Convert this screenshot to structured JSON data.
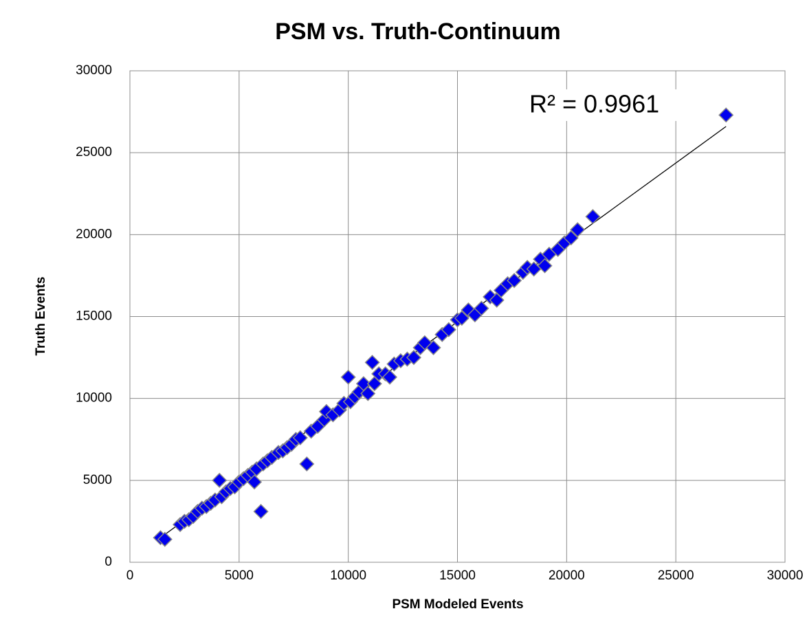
{
  "chart_data": {
    "type": "scatter",
    "title": "PSM vs. Truth-Continuum",
    "x_label": "PSM Modeled Events",
    "y_label": "Truth Events",
    "annotation": "R² = 0.9961",
    "series": [
      {
        "color": "#0000ee",
        "x": [
          1400,
          1600,
          2300,
          2500,
          2700,
          2900,
          3100,
          3300,
          3500,
          3700,
          3900,
          4100,
          4200,
          4400,
          4600,
          4800,
          5000,
          5200,
          5400,
          5600,
          5700,
          5800,
          6000,
          6100,
          6300,
          6500,
          6800,
          7000,
          7200,
          7400,
          7600,
          7800,
          8100,
          8300,
          8600,
          8900,
          9000,
          9300,
          9600,
          9800,
          10000,
          10100,
          10300,
          10500,
          10700,
          10900,
          11100,
          11200,
          11400,
          11700,
          11900,
          12100,
          12400,
          12700,
          13000,
          13300,
          13500,
          13900,
          14300,
          14600,
          15000,
          15200,
          15500,
          15800,
          16100,
          16500,
          16800,
          17000,
          17300,
          17600,
          18000,
          18200,
          18500,
          18800,
          19000,
          19200,
          19600,
          19900,
          20200,
          20500,
          21200,
          27300
        ],
        "values": [
          1500,
          1400,
          2300,
          2500,
          2600,
          2800,
          3100,
          3300,
          3400,
          3600,
          3800,
          5000,
          4000,
          4300,
          4500,
          4600,
          4900,
          5100,
          5300,
          5500,
          4900,
          5700,
          3100,
          6000,
          6200,
          6400,
          6700,
          6800,
          7000,
          7200,
          7500,
          7600,
          6000,
          8000,
          8300,
          8700,
          9200,
          9000,
          9300,
          9700,
          11300,
          9800,
          10100,
          10400,
          10900,
          10300,
          12200,
          10900,
          11500,
          11500,
          11300,
          12100,
          12300,
          12400,
          12500,
          13100,
          13400,
          13100,
          13900,
          14200,
          14800,
          14900,
          15400,
          15100,
          15500,
          16200,
          16000,
          16600,
          17000,
          17200,
          17700,
          18000,
          17900,
          18500,
          18100,
          18800,
          19100,
          19500,
          19800,
          20300,
          21100,
          27300
        ]
      }
    ],
    "trendline": {
      "x": [
        1400,
        27300
      ],
      "y": [
        1500,
        26600
      ]
    },
    "xlim": [
      0,
      30000
    ],
    "ylim": [
      0,
      30000
    ],
    "xticks": [
      0,
      5000,
      10000,
      15000,
      20000,
      25000,
      30000
    ],
    "yticks": [
      0,
      5000,
      10000,
      15000,
      20000,
      25000,
      30000
    ],
    "grid": true
  }
}
